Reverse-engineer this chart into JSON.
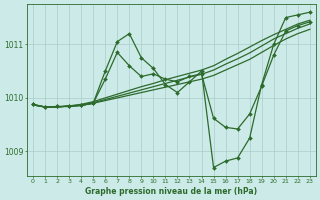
{
  "bg_color": "#cceae7",
  "grid_color": "#aaccca",
  "line_color": "#2d6b2d",
  "title": "Graphe pression niveau de la mer (hPa)",
  "xlim": [
    -0.5,
    23.5
  ],
  "ylim": [
    1008.55,
    1011.75
  ],
  "yticks": [
    1009,
    1010,
    1011
  ],
  "xticks": [
    0,
    1,
    2,
    3,
    4,
    5,
    6,
    7,
    8,
    9,
    10,
    11,
    12,
    13,
    14,
    15,
    16,
    17,
    18,
    19,
    20,
    21,
    22,
    23
  ],
  "series": [
    {
      "x": [
        0,
        1,
        2,
        3,
        4,
        5,
        6,
        7,
        8,
        9,
        10,
        11,
        12,
        13,
        14,
        15,
        16,
        17,
        18,
        19,
        20,
        21,
        22,
        23
      ],
      "y": [
        1009.87,
        1009.83,
        1009.83,
        1009.85,
        1009.86,
        1009.9,
        1009.95,
        1010.0,
        1010.05,
        1010.1,
        1010.15,
        1010.2,
        1010.25,
        1010.3,
        1010.35,
        1010.42,
        1010.52,
        1010.62,
        1010.72,
        1010.85,
        1010.98,
        1011.1,
        1011.2,
        1011.28
      ],
      "linewidth": 0.9,
      "marker": null
    },
    {
      "x": [
        0,
        1,
        2,
        3,
        4,
        5,
        6,
        7,
        8,
        9,
        10,
        11,
        12,
        13,
        14,
        15,
        16,
        17,
        18,
        19,
        20,
        21,
        22,
        23
      ],
      "y": [
        1009.87,
        1009.83,
        1009.83,
        1009.85,
        1009.87,
        1009.91,
        1009.97,
        1010.03,
        1010.09,
        1010.15,
        1010.21,
        1010.27,
        1010.33,
        1010.39,
        1010.44,
        1010.52,
        1010.63,
        1010.73,
        1010.84,
        1010.97,
        1011.1,
        1011.2,
        1011.3,
        1011.38
      ],
      "linewidth": 0.9,
      "marker": null
    },
    {
      "x": [
        0,
        1,
        2,
        3,
        4,
        5,
        6,
        7,
        8,
        9,
        10,
        11,
        12,
        13,
        14,
        15,
        16,
        17,
        18,
        19,
        20,
        21,
        22,
        23
      ],
      "y": [
        1009.87,
        1009.83,
        1009.83,
        1009.85,
        1009.88,
        1009.93,
        1010.0,
        1010.07,
        1010.14,
        1010.21,
        1010.27,
        1010.34,
        1010.4,
        1010.46,
        1010.52,
        1010.6,
        1010.72,
        1010.83,
        1010.95,
        1011.07,
        1011.18,
        1011.28,
        1011.38,
        1011.45
      ],
      "linewidth": 0.9,
      "marker": null
    },
    {
      "x": [
        0,
        1,
        2,
        3,
        4,
        5,
        6,
        7,
        8,
        9,
        10,
        11,
        12,
        13,
        14,
        15,
        16,
        17,
        18,
        19,
        20,
        21,
        22,
        23
      ],
      "y": [
        1009.88,
        1009.83,
        1009.84,
        1009.84,
        1009.86,
        1009.9,
        1010.35,
        1010.85,
        1010.6,
        1010.4,
        1010.45,
        1010.35,
        1010.3,
        1010.4,
        1010.45,
        1009.62,
        1009.45,
        1009.42,
        1009.7,
        1010.22,
        1010.8,
        1011.25,
        1011.35,
        1011.42
      ],
      "linewidth": 0.9,
      "marker": "D",
      "markersize": 2.0
    },
    {
      "x": [
        0,
        1,
        2,
        3,
        4,
        5,
        6,
        7,
        8,
        9,
        10,
        11,
        12,
        13,
        14,
        15,
        16,
        17,
        18,
        19,
        20,
        21,
        22,
        23
      ],
      "y": [
        1009.88,
        1009.83,
        1009.84,
        1009.84,
        1009.86,
        1009.9,
        1010.5,
        1011.05,
        1011.2,
        1010.75,
        1010.55,
        1010.25,
        1010.1,
        1010.3,
        1010.5,
        1008.7,
        1008.82,
        1008.88,
        1009.25,
        1010.25,
        1011.0,
        1011.5,
        1011.55,
        1011.6
      ],
      "linewidth": 0.9,
      "marker": "D",
      "markersize": 2.0
    }
  ]
}
